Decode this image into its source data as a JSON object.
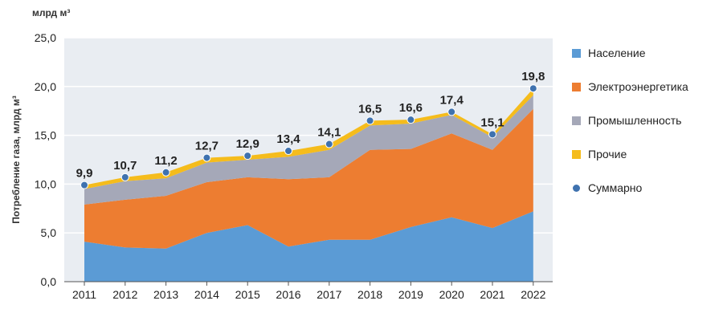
{
  "chart_data": {
    "type": "area",
    "stacked": true,
    "unit_label": "млрд м³",
    "ylabel": "Потребление газа, млрд м³",
    "xlabel": "",
    "ylim": [
      0,
      25
    ],
    "yticks": [
      "0,0",
      "5,0",
      "10,0",
      "15,0",
      "20,0",
      "25,0"
    ],
    "categories": [
      "2011",
      "2012",
      "2013",
      "2014",
      "2015",
      "2016",
      "2017",
      "2018",
      "2019",
      "2020",
      "2021",
      "2022"
    ],
    "series": [
      {
        "name": "Население",
        "color": "#5b9bd5",
        "values": [
          4.1,
          3.5,
          3.4,
          5.0,
          5.8,
          3.6,
          4.3,
          4.3,
          5.6,
          6.6,
          5.5,
          7.2
        ]
      },
      {
        "name": "Электроэнергетика",
        "color": "#ed7d31",
        "values": [
          3.8,
          4.9,
          5.4,
          5.2,
          4.9,
          6.9,
          6.4,
          9.2,
          8.0,
          8.6,
          8.0,
          10.5
        ]
      },
      {
        "name": "Промышленность",
        "color": "#a5a8b8",
        "values": [
          1.6,
          1.9,
          1.8,
          2.0,
          1.8,
          2.3,
          2.8,
          2.5,
          2.6,
          1.9,
          1.3,
          1.4
        ]
      },
      {
        "name": "Прочие",
        "color": "#f5bc1c",
        "values": [
          0.4,
          0.4,
          0.6,
          0.5,
          0.4,
          0.6,
          0.6,
          0.5,
          0.4,
          0.3,
          0.3,
          0.7
        ]
      }
    ],
    "totals": {
      "name": "Суммарно",
      "color": "#3f72af",
      "values": [
        9.9,
        10.7,
        11.2,
        12.7,
        12.9,
        13.4,
        14.1,
        16.5,
        16.6,
        17.4,
        15.1,
        19.8
      ],
      "labels": [
        "9,9",
        "10,7",
        "11,2",
        "12,7",
        "12,9",
        "13,4",
        "14,1",
        "16,5",
        "16,6",
        "17,4",
        "15,1",
        "19,8"
      ]
    },
    "legend": [
      "Население",
      "Электроэнергетика",
      "Промышленность",
      "Прочие",
      "Суммарно"
    ],
    "legend_position": "right",
    "grid": true
  }
}
